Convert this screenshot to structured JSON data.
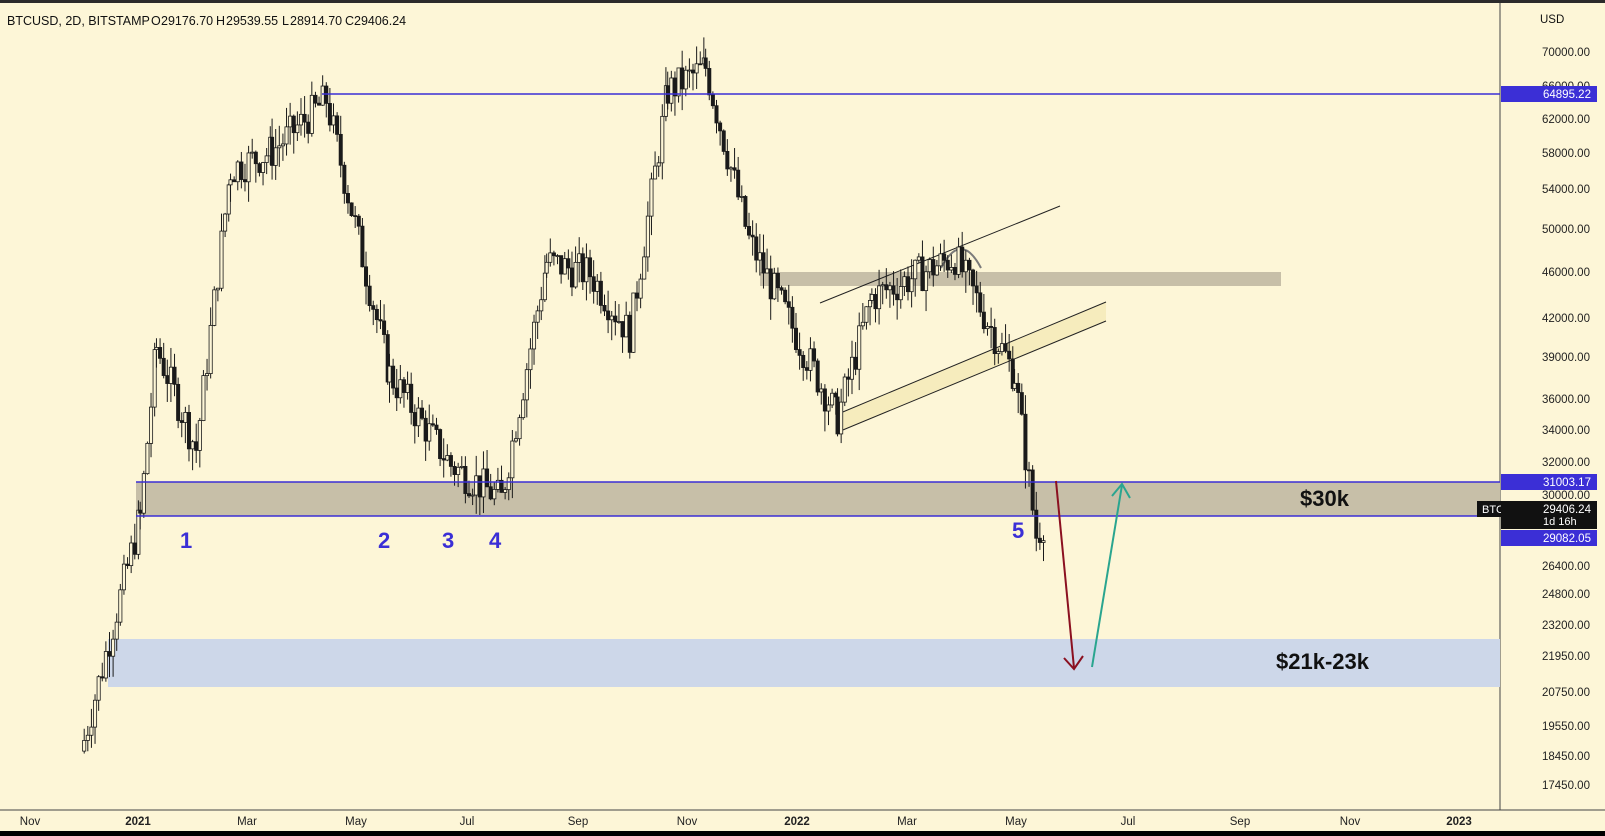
{
  "colors": {
    "background": "#fdf6d7",
    "candle": "#1a1a1a",
    "level_line": "#3b2fd6",
    "zone_30k": "#c7bfa8",
    "zone_46k": "#c7bfa8",
    "zone_21k": "#cdd7e9",
    "channel_fill": "#f6ecbd",
    "arrow_down": "#8b1020",
    "arrow_up": "#2aa58f",
    "label_bg": "#3b2fd6",
    "price_tag_bg": "#111111"
  },
  "header": {
    "symbol": "BTCUSD, 2D, BITSTAMP",
    "open_label": "O",
    "open": "29176.70",
    "high_label": "H",
    "high": "29539.55",
    "low_label": "L",
    "low": "28914.70",
    "close_label": "C",
    "close": "29406.24"
  },
  "axis": {
    "currency": "USD",
    "price_ticks": [
      "70000.00",
      "66000.00",
      "62000.00",
      "58000.00",
      "54000.00",
      "50000.00",
      "46000.00",
      "42000.00",
      "39000.00",
      "36000.00",
      "34000.00",
      "32000.00",
      "30000.00",
      "26400.00",
      "24800.00",
      "23200.00",
      "21950.00",
      "20750.00",
      "19550.00",
      "18450.00",
      "17450.00"
    ],
    "time_ticks": [
      "Nov",
      "2021",
      "Mar",
      "May",
      "Jul",
      "Sep",
      "Nov",
      "2022",
      "Mar",
      "May",
      "Jul",
      "Sep",
      "Nov",
      "2023"
    ]
  },
  "price_labels": {
    "level_top": "64895.22",
    "zone_top": "31003.17",
    "zone_bottom": "29082.05",
    "current_symbol": "BTCUSD",
    "current_price": "29406.24",
    "countdown": "1d 16h"
  },
  "annotations": {
    "zone_30k_label": "$30k",
    "zone_21k_label": "$21k-23k",
    "touch_1": "1",
    "touch_2": "2",
    "touch_3": "3",
    "touch_4": "4",
    "touch_5": "5"
  },
  "chart_data": {
    "type": "candlestick",
    "symbol": "BTCUSD",
    "timeframe": "2D",
    "exchange": "BITSTAMP",
    "y_scale": "log",
    "x_range": [
      "Nov 2020",
      "Jan 2023"
    ],
    "closes_approx": [
      [
        "2020-12-01",
        19000
      ],
      [
        "2021-01-01",
        29000
      ],
      [
        "2021-01-10",
        40000
      ],
      [
        "2021-02-01",
        33000
      ],
      [
        "2021-02-20",
        56000
      ],
      [
        "2021-03-15",
        58000
      ],
      [
        "2021-04-14",
        64000
      ],
      [
        "2021-05-19",
        38000
      ],
      [
        "2021-06-22",
        32000
      ],
      [
        "2021-07-20",
        30000
      ],
      [
        "2021-08-14",
        47000
      ],
      [
        "2021-09-07",
        46000
      ],
      [
        "2021-09-29",
        41000
      ],
      [
        "2021-10-20",
        65000
      ],
      [
        "2021-11-10",
        68000
      ],
      [
        "2021-12-04",
        49000
      ],
      [
        "2022-01-22",
        35000
      ],
      [
        "2022-02-10",
        44000
      ],
      [
        "2022-03-28",
        47500
      ],
      [
        "2022-04-30",
        38000
      ],
      [
        "2022-05-12",
        28000
      ],
      [
        "2022-05-20",
        29406.24
      ]
    ],
    "horizontal_levels": [
      64895.22,
      31003.17,
      29082.05
    ],
    "zones": [
      {
        "label": "$30k",
        "from": 29082.05,
        "to": 31003.17
      },
      {
        "label": "$21k-23k",
        "from": 21000,
        "to": 23000
      }
    ],
    "touch_points": [
      "1",
      "2",
      "3",
      "4",
      "5"
    ],
    "projection": {
      "down_target": 21950,
      "up_target": 31003.17
    }
  }
}
